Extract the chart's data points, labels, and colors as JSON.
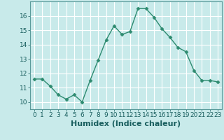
{
  "x": [
    0,
    1,
    2,
    3,
    4,
    5,
    6,
    7,
    8,
    9,
    10,
    11,
    12,
    13,
    14,
    15,
    16,
    17,
    18,
    19,
    20,
    21,
    22,
    23
  ],
  "y": [
    11.6,
    11.6,
    11.1,
    10.5,
    10.2,
    10.5,
    10.0,
    11.5,
    12.9,
    14.3,
    15.3,
    14.7,
    14.9,
    16.5,
    16.5,
    15.9,
    15.1,
    14.5,
    13.8,
    13.5,
    12.2,
    11.5,
    11.5,
    11.4
  ],
  "line_color": "#2e8b70",
  "marker_color": "#2e8b70",
  "background_color": "#c8eaea",
  "grid_color": "#ffffff",
  "xlabel": "Humidex (Indice chaleur)",
  "xlabel_fontsize": 8,
  "ylim": [
    9.5,
    17.0
  ],
  "xlim": [
    -0.5,
    23.5
  ],
  "yticks": [
    10,
    11,
    12,
    13,
    14,
    15,
    16
  ],
  "xticks": [
    0,
    1,
    2,
    3,
    4,
    5,
    6,
    7,
    8,
    9,
    10,
    11,
    12,
    13,
    14,
    15,
    16,
    17,
    18,
    19,
    20,
    21,
    22,
    23
  ],
  "tick_fontsize": 6.5,
  "marker_size": 2.5,
  "line_width": 1.0
}
